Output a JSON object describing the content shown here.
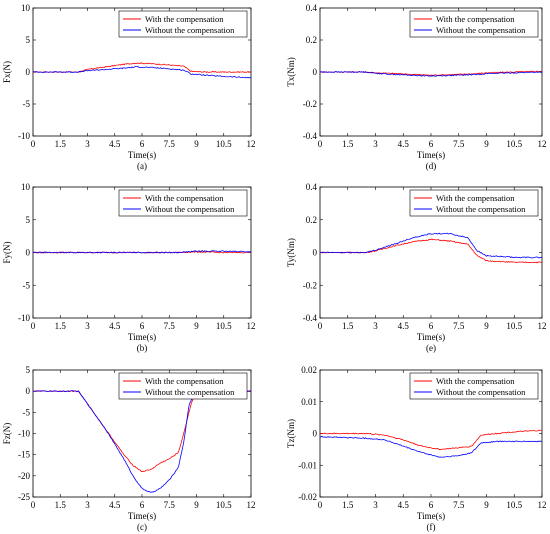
{
  "chart_data": [
    {
      "type": "line",
      "ylabel": "Fx(N)",
      "xlabel": "Time(s)",
      "caption": "(a)",
      "xlim": [
        0,
        12
      ],
      "ylim": [
        -10,
        10
      ],
      "xticks": [
        "0",
        "1.5",
        "3",
        "4.5",
        "6",
        "7.5",
        "9",
        "10.5",
        "12"
      ],
      "yticks": [
        "-10",
        "-5",
        "0",
        "5",
        "10"
      ],
      "legend_position": "top-right",
      "series": [
        {
          "name": "With the compensation",
          "color": "#ff0000",
          "x": [
            0,
            2.5,
            3,
            4,
            5,
            5.7,
            6.5,
            7.5,
            8.3,
            8.7,
            9.5,
            10.5,
            12
          ],
          "y": [
            0,
            0,
            0.4,
            0.8,
            1.2,
            1.4,
            1.3,
            1.1,
            0.9,
            0.1,
            0,
            0,
            0
          ]
        },
        {
          "name": "Without the compensation",
          "color": "#0000ff",
          "x": [
            0,
            2.5,
            3,
            4,
            5,
            5.7,
            6.5,
            7.5,
            8.3,
            8.7,
            9.5,
            10.5,
            12
          ],
          "y": [
            0,
            0,
            0.2,
            0.4,
            0.6,
            0.8,
            0.7,
            0.5,
            0.3,
            -0.3,
            -0.5,
            -0.7,
            -0.9
          ]
        }
      ]
    },
    {
      "type": "line",
      "ylabel": "Tx(Nm)",
      "xlabel": "Time(s)",
      "caption": "(d)",
      "xlim": [
        0,
        12
      ],
      "ylim": [
        -0.4,
        0.4
      ],
      "xticks": [
        "0",
        "1.5",
        "3",
        "4.5",
        "6",
        "7.5",
        "9",
        "10.5",
        "12"
      ],
      "yticks": [
        "-0.4",
        "-0.2",
        "0",
        "0.2",
        "0.4"
      ],
      "legend_position": "top-right",
      "series": [
        {
          "name": "With the compensation",
          "color": "#ff0000",
          "x": [
            0,
            2.5,
            3,
            4.5,
            6,
            7.5,
            8.5,
            9,
            10.5,
            12
          ],
          "y": [
            0,
            0,
            -0.005,
            -0.012,
            -0.02,
            -0.015,
            -0.01,
            -0.005,
            0,
            0.005
          ]
        },
        {
          "name": "Without the compensation",
          "color": "#0000ff",
          "x": [
            0,
            2.5,
            3,
            4.5,
            6,
            7.5,
            8.5,
            9,
            10.5,
            12
          ],
          "y": [
            0,
            0,
            -0.008,
            -0.018,
            -0.025,
            -0.02,
            -0.015,
            -0.01,
            -0.005,
            0
          ]
        }
      ]
    },
    {
      "type": "line",
      "ylabel": "Fy(N)",
      "xlabel": "Time(s)",
      "caption": "(b)",
      "xlim": [
        0,
        12
      ],
      "ylim": [
        -10,
        10
      ],
      "xticks": [
        "0",
        "1.5",
        "3",
        "4.5",
        "6",
        "7.5",
        "9",
        "10.5",
        "12"
      ],
      "yticks": [
        "-10",
        "-5",
        "0",
        "5",
        "10"
      ],
      "legend_position": "top-right",
      "series": [
        {
          "name": "With the compensation",
          "color": "#ff0000",
          "x": [
            0,
            3,
            6,
            8,
            9,
            10.5,
            12
          ],
          "y": [
            0,
            0,
            0,
            0,
            0.1,
            0,
            0
          ]
        },
        {
          "name": "Without the compensation",
          "color": "#0000ff",
          "x": [
            0,
            3,
            6,
            8,
            9,
            10.5,
            12
          ],
          "y": [
            0,
            0,
            0,
            0,
            0.2,
            0.2,
            0.1
          ]
        }
      ]
    },
    {
      "type": "line",
      "ylabel": "Ty(Nm)",
      "xlabel": "Time(s)",
      "caption": "(e)",
      "xlim": [
        0,
        12
      ],
      "ylim": [
        -0.4,
        0.4
      ],
      "xticks": [
        "0",
        "1.5",
        "3",
        "4.5",
        "6",
        "7.5",
        "9",
        "10.5",
        "12"
      ],
      "yticks": [
        "-0.4",
        "-0.2",
        "0",
        "0.2",
        "0.4"
      ],
      "legend_position": "top-right",
      "series": [
        {
          "name": "With the compensation",
          "color": "#ff0000",
          "x": [
            0,
            2.5,
            3,
            4,
            5,
            6,
            7,
            8,
            8.5,
            9,
            10.5,
            12
          ],
          "y": [
            0,
            0,
            0.01,
            0.04,
            0.065,
            0.08,
            0.07,
            0.05,
            -0.02,
            -0.05,
            -0.06,
            -0.06
          ]
        },
        {
          "name": "Without the compensation",
          "color": "#0000ff",
          "x": [
            0,
            2.5,
            3,
            4,
            5,
            6,
            7,
            8,
            8.5,
            9,
            10.5,
            12
          ],
          "y": [
            0,
            0,
            0.015,
            0.05,
            0.09,
            0.115,
            0.115,
            0.09,
            0.01,
            -0.02,
            -0.03,
            -0.03
          ]
        }
      ]
    },
    {
      "type": "line",
      "ylabel": "Fz(N)",
      "xlabel": "Time(s)",
      "caption": "(c)",
      "xlim": [
        0,
        12
      ],
      "ylim": [
        -25,
        5
      ],
      "xticks": [
        "0",
        "1.5",
        "3",
        "4.5",
        "6",
        "7.5",
        "9",
        "10.5",
        "12"
      ],
      "yticks": [
        "-25",
        "-20",
        "-15",
        "-10",
        "-5",
        "0",
        "5"
      ],
      "legend_position": "top-right",
      "series": [
        {
          "name": "With the compensation",
          "color": "#ff0000",
          "x": [
            0,
            2.5,
            3,
            4,
            5,
            5.5,
            6,
            6.5,
            7,
            7.5,
            8,
            8.3,
            8.7,
            9,
            12
          ],
          "y": [
            0,
            0,
            -3,
            -9,
            -15,
            -17.5,
            -19,
            -18.5,
            -17,
            -16,
            -14.5,
            -10,
            -3,
            0,
            0
          ]
        },
        {
          "name": "Without the compensation",
          "color": "#0000ff",
          "x": [
            0,
            2.5,
            3,
            4,
            5,
            5.5,
            6,
            6.5,
            7,
            7.5,
            8,
            8.3,
            8.6,
            9,
            12
          ],
          "y": [
            0,
            0,
            -3,
            -9,
            -16,
            -20,
            -23,
            -24,
            -23,
            -21,
            -18,
            -12,
            -3,
            0,
            0
          ]
        }
      ]
    },
    {
      "type": "line",
      "ylabel": "Tz(Nm)",
      "xlabel": "Time(s)",
      "caption": "(f)",
      "xlim": [
        0,
        12
      ],
      "ylim": [
        -0.02,
        0.02
      ],
      "xticks": [
        "0",
        "1.5",
        "3",
        "4.5",
        "6",
        "7.5",
        "9",
        "10.5",
        "12"
      ],
      "yticks": [
        "-0.02",
        "-0.01",
        "0",
        "0.01",
        "0.02"
      ],
      "legend_position": "top-right",
      "series": [
        {
          "name": "With the compensation",
          "color": "#ff0000",
          "x": [
            0,
            2.5,
            3.5,
            4.5,
            5.5,
            6.5,
            7.5,
            8.2,
            8.7,
            9.5,
            10.5,
            12
          ],
          "y": [
            0,
            0,
            -0.0005,
            -0.002,
            -0.004,
            -0.005,
            -0.0045,
            -0.004,
            -0.0005,
            0,
            0.0005,
            0.001
          ]
        },
        {
          "name": "Without the compensation",
          "color": "#0000ff",
          "x": [
            0,
            2.5,
            3.5,
            4.5,
            5.5,
            6.5,
            7.5,
            8.2,
            8.7,
            9.5,
            10.5,
            12
          ],
          "y": [
            -0.001,
            -0.0015,
            -0.002,
            -0.004,
            -0.006,
            -0.0075,
            -0.007,
            -0.006,
            -0.003,
            -0.0025,
            -0.0025,
            -0.0025
          ]
        }
      ]
    }
  ]
}
